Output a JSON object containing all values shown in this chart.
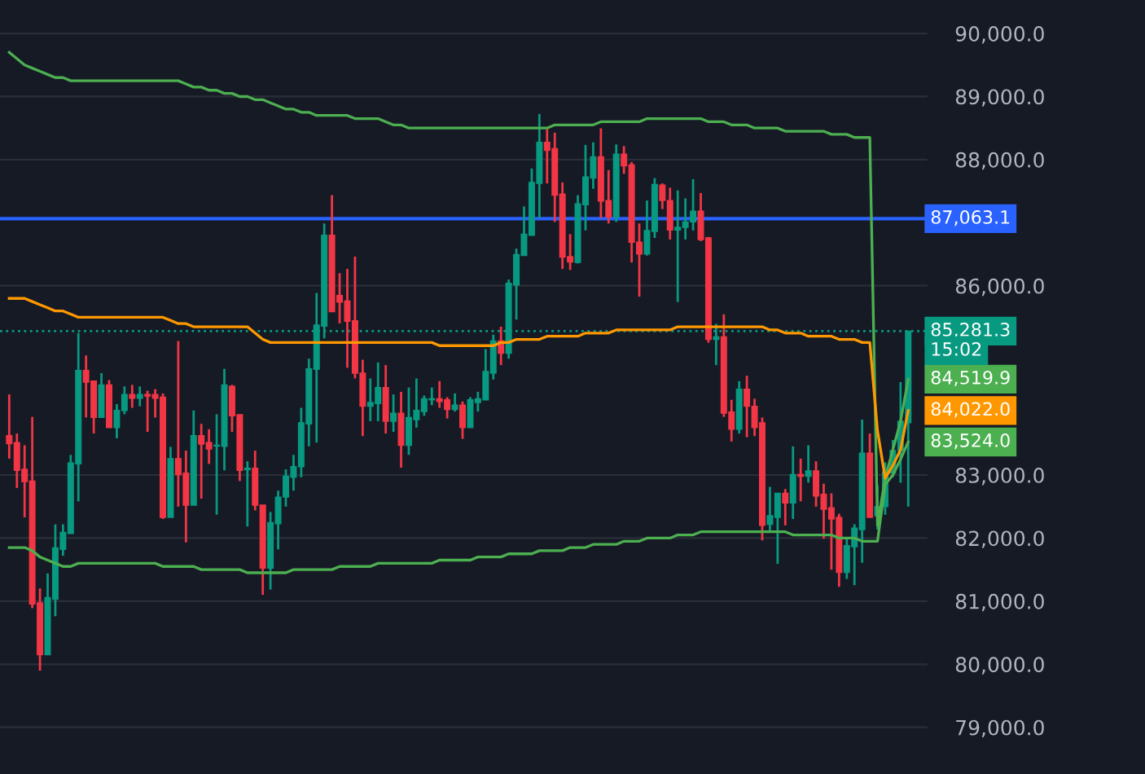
{
  "chart_data": {
    "type": "candlestick",
    "categories": [
      null,
      null,
      null,
      null,
      null,
      null,
      null,
      null,
      null,
      null,
      null,
      null,
      null,
      null,
      null,
      null,
      null,
      null,
      null,
      null,
      null,
      null,
      null,
      null,
      null,
      null,
      null,
      null,
      null,
      null,
      null,
      null,
      null,
      null,
      null,
      null,
      null,
      null,
      null,
      null,
      null,
      null,
      null,
      null,
      null,
      null,
      null,
      null,
      null,
      null,
      null,
      null,
      null,
      null,
      null,
      null,
      null,
      null,
      null,
      null,
      null,
      null,
      null,
      null,
      null,
      null,
      null,
      null,
      null,
      null,
      null,
      null,
      null,
      null,
      null,
      null,
      null,
      null,
      null,
      null,
      null,
      null,
      null,
      null,
      null,
      null,
      null,
      null,
      null,
      null,
      null,
      null,
      null,
      null,
      null,
      null,
      null,
      null,
      null,
      null,
      null,
      null,
      null,
      null,
      null,
      null,
      null,
      null,
      null,
      null,
      null,
      null,
      null,
      null,
      null,
      null,
      null,
      null
    ],
    "ohlc": [
      [
        83624,
        84277,
        83260,
        83497
      ],
      [
        83514,
        83658,
        82794,
        83074
      ],
      [
        83091,
        83472,
        82329,
        82896
      ],
      [
        82904,
        83921,
        80889,
        80956
      ],
      [
        80973,
        81202,
        79898,
        80151
      ],
      [
        80151,
        81439,
        80151,
        81058
      ],
      [
        81032,
        82218,
        80761,
        81846
      ],
      [
        81820,
        82218,
        81719,
        82091
      ],
      [
        82074,
        83319,
        82074,
        83192
      ],
      [
        83176,
        85251,
        82583,
        84658
      ],
      [
        84658,
        84895,
        83912,
        84471
      ],
      [
        84488,
        84488,
        83658,
        83912
      ],
      [
        83912,
        84615,
        83912,
        84429
      ],
      [
        84429,
        84505,
        83751,
        83751
      ],
      [
        83751,
        84124,
        83582,
        84023
      ],
      [
        84023,
        84404,
        83963,
        84277
      ],
      [
        84277,
        84429,
        84065,
        84217
      ],
      [
        84217,
        84404,
        84090,
        84277
      ],
      [
        84277,
        84336,
        83684,
        84251
      ],
      [
        84277,
        84361,
        83912,
        84217
      ],
      [
        84234,
        84293,
        82303,
        82329
      ],
      [
        82329,
        83446,
        82329,
        83260
      ],
      [
        83260,
        85124,
        82498,
        83006
      ],
      [
        83031,
        83387,
        81931,
        82523
      ],
      [
        82523,
        84023,
        82523,
        83624
      ],
      [
        83624,
        83811,
        82625,
        83489
      ],
      [
        83514,
        83726,
        83176,
        83412
      ],
      [
        83460,
        83963,
        82371,
        83472
      ],
      [
        83455,
        84683,
        83074,
        84429
      ],
      [
        84404,
        84429,
        83684,
        83938
      ],
      [
        83955,
        83955,
        82904,
        83074
      ],
      [
        83082,
        83218,
        82184,
        83108
      ],
      [
        83108,
        83387,
        82439,
        82523
      ],
      [
        82523,
        82523,
        81100,
        81524
      ],
      [
        81524,
        82413,
        81185,
        82244
      ],
      [
        82227,
        82752,
        81820,
        82650
      ],
      [
        82650,
        83091,
        82498,
        82981
      ],
      [
        82964,
        83319,
        82752,
        83133
      ],
      [
        83133,
        84065,
        82964,
        83828
      ],
      [
        83811,
        84844,
        83455,
        84683
      ],
      [
        84675,
        85886,
        83514,
        85378
      ],
      [
        85361,
        86987,
        85166,
        86801
      ],
      [
        86801,
        87436,
        85590,
        85590
      ],
      [
        85844,
        86199,
        85403,
        85742
      ],
      [
        85759,
        86267,
        84700,
        85437
      ],
      [
        85446,
        86462,
        84531,
        84615
      ],
      [
        84615,
        84827,
        83616,
        84090
      ],
      [
        84090,
        84531,
        83853,
        84149
      ],
      [
        84133,
        84785,
        83853,
        84387
      ],
      [
        84387,
        84742,
        83658,
        83853
      ],
      [
        83853,
        84277,
        83684,
        83980
      ],
      [
        83980,
        84319,
        83116,
        83472
      ],
      [
        83472,
        84387,
        83319,
        83912
      ],
      [
        83879,
        84531,
        83751,
        84023
      ],
      [
        84006,
        84260,
        83938,
        84209
      ],
      [
        84192,
        84387,
        84107,
        84209
      ],
      [
        84209,
        84488,
        84065,
        84166
      ],
      [
        84192,
        84234,
        83895,
        84040
      ],
      [
        84040,
        84293,
        84006,
        84107
      ],
      [
        84107,
        84166,
        83573,
        83751
      ],
      [
        83751,
        84234,
        83751,
        84192
      ],
      [
        84149,
        84319,
        84006,
        84209
      ],
      [
        84192,
        84996,
        84192,
        84641
      ],
      [
        84615,
        85225,
        84514,
        85124
      ],
      [
        85124,
        85352,
        84742,
        84929
      ],
      [
        84929,
        86098,
        84844,
        86038
      ],
      [
        86013,
        86589,
        85463,
        86496
      ],
      [
        86479,
        87258,
        86479,
        86818
      ],
      [
        86801,
        87859,
        86801,
        87639
      ],
      [
        87622,
        88723,
        87072,
        88274
      ],
      [
        88274,
        88486,
        87622,
        88147
      ],
      [
        88172,
        88427,
        87012,
        87436
      ],
      [
        87453,
        87639,
        86267,
        86453
      ],
      [
        86462,
        86818,
        86250,
        86377
      ],
      [
        86369,
        87436,
        86352,
        87300
      ],
      [
        87283,
        88232,
        86877,
        87724
      ],
      [
        87707,
        88274,
        87537,
        88045
      ],
      [
        88045,
        88495,
        87072,
        87343
      ],
      [
        87351,
        87834,
        86987,
        87089
      ],
      [
        87089,
        88240,
        87012,
        88088
      ],
      [
        88088,
        88215,
        87775,
        87902
      ],
      [
        87919,
        87961,
        86369,
        86691
      ],
      [
        86691,
        86987,
        85827,
        86504
      ],
      [
        86504,
        87351,
        86479,
        86877
      ],
      [
        86860,
        87707,
        86758,
        87605
      ],
      [
        87597,
        87622,
        87216,
        87351
      ],
      [
        87351,
        87554,
        86733,
        86885
      ],
      [
        86885,
        87512,
        85742,
        86927
      ],
      [
        86927,
        87385,
        86733,
        87012
      ],
      [
        87012,
        87690,
        86877,
        87182
      ],
      [
        87182,
        87470,
        86708,
        86733
      ],
      [
        86758,
        86775,
        85098,
        85149
      ],
      [
        85149,
        85395,
        84742,
        85191
      ],
      [
        85191,
        85547,
        83921,
        83980
      ],
      [
        83997,
        84192,
        83531,
        83726
      ],
      [
        83726,
        84488,
        83658,
        84361
      ],
      [
        84361,
        84573,
        83599,
        84090
      ],
      [
        84090,
        84209,
        83616,
        83751
      ],
      [
        83828,
        83912,
        81964,
        82201
      ],
      [
        82218,
        82812,
        82117,
        82354
      ],
      [
        82329,
        82710,
        81591,
        82710
      ],
      [
        82710,
        82777,
        82201,
        82557
      ],
      [
        82557,
        83455,
        82303,
        83006
      ],
      [
        83006,
        83260,
        82583,
        82981
      ],
      [
        82981,
        83472,
        82879,
        83065
      ],
      [
        83065,
        83218,
        82498,
        82667
      ],
      [
        82693,
        82862,
        81990,
        82456
      ],
      [
        82481,
        82710,
        81498,
        82303
      ],
      [
        82329,
        82388,
        81227,
        81456
      ],
      [
        81456,
        82015,
        81354,
        81880
      ],
      [
        81863,
        82218,
        81253,
        82159
      ],
      [
        82134,
        83879,
        81608,
        83345
      ],
      [
        83345,
        83658,
        82329,
        82329
      ],
      [
        82354,
        82837,
        82134,
        82498
      ],
      [
        82498,
        83201,
        82371,
        83048
      ],
      [
        83031,
        83557,
        82964,
        83387
      ],
      [
        83387,
        84471,
        82879,
        83853
      ],
      [
        83828,
        85281.3,
        82498,
        85281.3
      ]
    ],
    "colors": [
      "#f23645",
      "#f23645",
      "#f23645",
      "#f23645",
      "#f23645",
      "#089981",
      "#089981",
      "#089981",
      "#089981",
      "#089981",
      "#f23645",
      "#f23645",
      "#089981",
      "#f23645",
      "#089981",
      "#089981",
      "#f23645",
      "#089981",
      "#f23645",
      "#f23645",
      "#f23645",
      "#089981",
      "#f23645",
      "#f23645",
      "#089981",
      "#f23645",
      "#f23645",
      "#089981",
      "#089981",
      "#f23645",
      "#f23645",
      "#089981",
      "#f23645",
      "#f23645",
      "#089981",
      "#089981",
      "#089981",
      "#089981",
      "#089981",
      "#089981",
      "#089981",
      "#089981",
      "#f23645",
      "#f23645",
      "#f23645",
      "#f23645",
      "#f23645",
      "#089981",
      "#089981",
      "#f23645",
      "#089981",
      "#f23645",
      "#089981",
      "#089981",
      "#089981",
      "#089981",
      "#f23645",
      "#f23645",
      "#089981",
      "#f23645",
      "#089981",
      "#089981",
      "#089981",
      "#089981",
      "#f23645",
      "#089981",
      "#089981",
      "#089981",
      "#089981",
      "#089981",
      "#f23645",
      "#f23645",
      "#f23645",
      "#f23645",
      "#089981",
      "#089981",
      "#089981",
      "#f23645",
      "#f23645",
      "#089981",
      "#f23645",
      "#f23645",
      "#f23645",
      "#089981",
      "#089981",
      "#f23645",
      "#f23645",
      "#089981",
      "#089981",
      "#089981",
      "#f23645",
      "#f23645",
      "#089981",
      "#f23645",
      "#f23645",
      "#089981",
      "#f23645",
      "#f23645",
      "#f23645",
      "#089981",
      "#089981",
      "#f23645",
      "#089981",
      "#f23645",
      "#089981",
      "#f23645",
      "#f23645",
      "#f23645",
      "#f23645",
      "#089981",
      "#089981",
      "#089981",
      "#f23645",
      "#089981",
      "#089981",
      "#089981",
      "#089981",
      "#089981"
    ],
    "series": [
      {
        "type": "line",
        "color": "#4caf50",
        "values": [
          89700,
          89600,
          89500,
          89450,
          89400,
          89350,
          89300,
          89300,
          89250,
          89250,
          89250,
          89250,
          89250,
          89250,
          89250,
          89250,
          89250,
          89250,
          89250,
          89250,
          89250,
          89250,
          89250,
          89200,
          89150,
          89150,
          89100,
          89100,
          89050,
          89050,
          89000,
          89000,
          88950,
          88950,
          88900,
          88850,
          88800,
          88800,
          88750,
          88750,
          88700,
          88700,
          88700,
          88700,
          88700,
          88650,
          88650,
          88650,
          88650,
          88600,
          88550,
          88550,
          88500,
          88500,
          88500,
          88500,
          88500,
          88500,
          88500,
          88500,
          88500,
          88500,
          88500,
          88500,
          88500,
          88500,
          88500,
          88500,
          88500,
          88500,
          88500,
          88550,
          88550,
          88550,
          88550,
          88550,
          88550,
          88600,
          88600,
          88600,
          88600,
          88600,
          88600,
          88650,
          88650,
          88650,
          88650,
          88650,
          88650,
          88650,
          88650,
          88600,
          88600,
          88600,
          88550,
          88550,
          88550,
          88500,
          88500,
          88500,
          88500,
          88450,
          88450,
          88450,
          88450,
          88450,
          88450,
          88400,
          88400,
          88400,
          88350,
          88350,
          88350,
          82200,
          82950,
          83400,
          83850,
          84519.9
        ],
        "value_labels": [
          null,
          null,
          null,
          null,
          null,
          null,
          null,
          null,
          null,
          null,
          null,
          null,
          null,
          null,
          null,
          null,
          null,
          null,
          null,
          null,
          null,
          null,
          null,
          null,
          null,
          null,
          null,
          null,
          null,
          null,
          null,
          null,
          null,
          null,
          null,
          null,
          null,
          null,
          null,
          null,
          null,
          null,
          null,
          null,
          null,
          null,
          null,
          null,
          null,
          null,
          null,
          null,
          null,
          null,
          null,
          null,
          null,
          null,
          null,
          null,
          null,
          null,
          null,
          null,
          null,
          null,
          null,
          null,
          null,
          null,
          null,
          null,
          null,
          null,
          null,
          null,
          null,
          null,
          null,
          null,
          null,
          null,
          null,
          null,
          null,
          null,
          null,
          null,
          null,
          null,
          null,
          null,
          null,
          null,
          null,
          null,
          null,
          null,
          null,
          null,
          null,
          null,
          null,
          null,
          null,
          null,
          null,
          null,
          null,
          null,
          null,
          null,
          null,
          null,
          null,
          null,
          null,
          "84,519.9"
        ]
      },
      {
        "type": "line",
        "color": "#ff9800",
        "values": [
          85800,
          85800,
          85800,
          85750,
          85700,
          85650,
          85600,
          85600,
          85550,
          85500,
          85500,
          85500,
          85500,
          85500,
          85500,
          85500,
          85500,
          85500,
          85500,
          85500,
          85500,
          85450,
          85400,
          85400,
          85350,
          85350,
          85350,
          85350,
          85350,
          85350,
          85350,
          85350,
          85250,
          85150,
          85100,
          85100,
          85100,
          85100,
          85100,
          85100,
          85100,
          85100,
          85100,
          85100,
          85100,
          85100,
          85100,
          85100,
          85100,
          85100,
          85100,
          85100,
          85100,
          85100,
          85100,
          85100,
          85050,
          85050,
          85050,
          85050,
          85050,
          85050,
          85050,
          85050,
          85100,
          85100,
          85150,
          85150,
          85150,
          85150,
          85200,
          85200,
          85200,
          85200,
          85200,
          85250,
          85250,
          85250,
          85250,
          85300,
          85300,
          85300,
          85300,
          85300,
          85300,
          85300,
          85300,
          85350,
          85350,
          85350,
          85350,
          85350,
          85350,
          85350,
          85350,
          85350,
          85350,
          85350,
          85350,
          85300,
          85300,
          85250,
          85250,
          85250,
          85200,
          85200,
          85200,
          85200,
          85150,
          85150,
          85150,
          85100,
          85100,
          83700,
          82950,
          83150,
          83400,
          84022.0
        ],
        "value_labels": [
          null,
          null,
          null,
          null,
          null,
          null,
          null,
          null,
          null,
          null,
          null,
          null,
          null,
          null,
          null,
          null,
          null,
          null,
          null,
          null,
          null,
          null,
          null,
          null,
          null,
          null,
          null,
          null,
          null,
          null,
          null,
          null,
          null,
          null,
          null,
          null,
          null,
          null,
          null,
          null,
          null,
          null,
          null,
          null,
          null,
          null,
          null,
          null,
          null,
          null,
          null,
          null,
          null,
          null,
          null,
          null,
          null,
          null,
          null,
          null,
          null,
          null,
          null,
          null,
          null,
          null,
          null,
          null,
          null,
          null,
          null,
          null,
          null,
          null,
          null,
          null,
          null,
          null,
          null,
          null,
          null,
          null,
          null,
          null,
          null,
          null,
          null,
          null,
          null,
          null,
          null,
          null,
          null,
          null,
          null,
          null,
          null,
          null,
          null,
          null,
          null,
          null,
          null,
          null,
          null,
          null,
          null,
          null,
          null,
          null,
          null,
          null,
          null,
          null,
          null,
          null,
          null,
          "84,022.0"
        ]
      },
      {
        "type": "line",
        "color": "#4caf50",
        "values": [
          81850,
          81850,
          81850,
          81800,
          81700,
          81650,
          81600,
          81550,
          81550,
          81600,
          81600,
          81600,
          81600,
          81600,
          81600,
          81600,
          81600,
          81600,
          81600,
          81600,
          81550,
          81550,
          81550,
          81550,
          81550,
          81500,
          81500,
          81500,
          81500,
          81500,
          81500,
          81450,
          81450,
          81450,
          81450,
          81450,
          81450,
          81500,
          81500,
          81500,
          81500,
          81500,
          81500,
          81550,
          81550,
          81550,
          81550,
          81550,
          81600,
          81600,
          81600,
          81600,
          81600,
          81600,
          81600,
          81600,
          81650,
          81650,
          81650,
          81650,
          81650,
          81700,
          81700,
          81700,
          81700,
          81750,
          81750,
          81750,
          81750,
          81800,
          81800,
          81800,
          81800,
          81850,
          81850,
          81850,
          81900,
          81900,
          81900,
          81900,
          81950,
          81950,
          81950,
          82000,
          82000,
          82000,
          82000,
          82050,
          82050,
          82050,
          82100,
          82100,
          82100,
          82100,
          82100,
          82100,
          82100,
          82100,
          82100,
          82100,
          82100,
          82100,
          82050,
          82050,
          82050,
          82050,
          82050,
          82050,
          82000,
          82000,
          82000,
          81950,
          81950,
          81950,
          82850,
          83000,
          83250,
          83524.0
        ],
        "value_labels": [
          null,
          null,
          null,
          null,
          null,
          null,
          null,
          null,
          null,
          null,
          null,
          null,
          null,
          null,
          null,
          null,
          null,
          null,
          null,
          null,
          null,
          null,
          null,
          null,
          null,
          null,
          null,
          null,
          null,
          null,
          null,
          null,
          null,
          null,
          null,
          null,
          null,
          null,
          null,
          null,
          null,
          null,
          null,
          null,
          null,
          null,
          null,
          null,
          null,
          null,
          null,
          null,
          null,
          null,
          null,
          null,
          null,
          null,
          null,
          null,
          null,
          null,
          null,
          null,
          null,
          null,
          null,
          null,
          null,
          null,
          null,
          null,
          null,
          null,
          null,
          null,
          null,
          null,
          null,
          null,
          null,
          null,
          null,
          null,
          null,
          null,
          null,
          null,
          null,
          null,
          null,
          null,
          null,
          null,
          null,
          null,
          null,
          null,
          null,
          null,
          null,
          null,
          null,
          null,
          null,
          null,
          null,
          null,
          null,
          null,
          null,
          null,
          null,
          null,
          null,
          null,
          null,
          "83,524.0"
        ]
      }
    ],
    "ylim": [
      78260,
      90530
    ],
    "yticks": [
      {
        "value": 79000,
        "label": "79,000.0"
      },
      {
        "value": 80000,
        "label": "80,000.0"
      },
      {
        "value": 81000,
        "label": "81,000.0"
      },
      {
        "value": 82000,
        "label": "82,000.0"
      },
      {
        "value": 83000,
        "label": "83,000.0"
      },
      {
        "value": 86000,
        "label": "86,000.0"
      },
      {
        "value": 88000,
        "label": "88,000.0"
      },
      {
        "value": 89000,
        "label": "89,000.0"
      },
      {
        "value": 90000,
        "label": "90,000.0"
      }
    ],
    "ref_lines": [
      {
        "axis": "y",
        "value": 87063.1,
        "label": "87,063.1",
        "color": "#2962ff",
        "line_style": "solid"
      },
      {
        "axis": "y",
        "value": 85281.3,
        "label": "85,281.3",
        "color": "#089981",
        "line_style": "dotted"
      }
    ],
    "annotations": [
      "15:02"
    ],
    "grid": "y",
    "legend": false,
    "tick_labels": "y"
  }
}
